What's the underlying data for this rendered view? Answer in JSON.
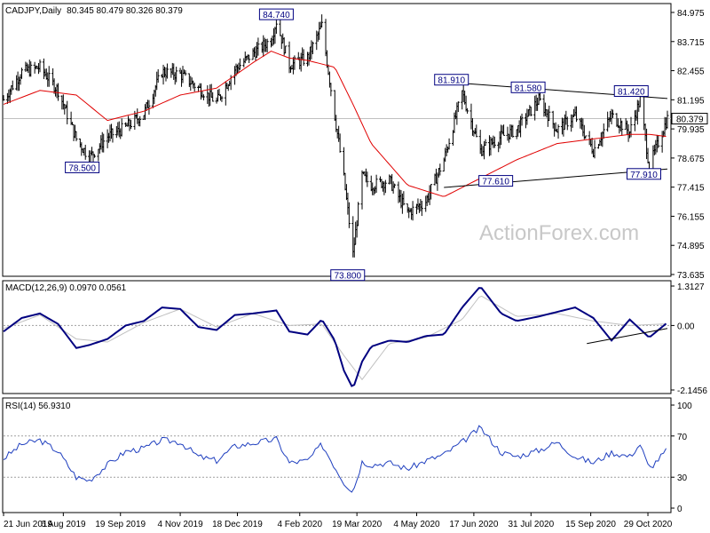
{
  "chart_data": [
    {
      "type": "ohlc",
      "title": "CADJPY,Daily",
      "ohlc_label": "80.345 80.479 80.326 80.379",
      "symbol": "CADJPY",
      "timeframe": "Daily",
      "last": {
        "open": 80.345,
        "high": 80.479,
        "low": 80.326,
        "close": 80.379
      },
      "last_price_label": "80.379",
      "watermark": "ActionForex.com",
      "y_ticks": [
        "84.975",
        "83.715",
        "82.455",
        "81.195",
        "79.935",
        "78.675",
        "77.415",
        "76.155",
        "74.895",
        "73.635"
      ],
      "ylim": [
        73.635,
        84.975
      ],
      "x_ticks": [
        "21 Jun 2019",
        "6 Aug 2019",
        "19 Sep 2019",
        "4 Nov 2019",
        "18 Dec 2019",
        "4 Feb 2020",
        "19 Mar 2020",
        "4 May 2020",
        "17 Jun 2020",
        "31 Jul 2020",
        "15 Sep 2020",
        "29 Oct 2020"
      ],
      "annotations": [
        {
          "label": "84.740",
          "value": 84.74,
          "date": "2020-01-17"
        },
        {
          "label": "78.500",
          "value": 78.5,
          "date": "2019-08-26"
        },
        {
          "label": "73.800",
          "value": 73.8,
          "date": "2020-03-16"
        },
        {
          "label": "81.910",
          "value": 81.91,
          "date": "2020-06-08"
        },
        {
          "label": "81.580",
          "value": 81.58,
          "date": "2020-08-06"
        },
        {
          "label": "81.420",
          "value": 81.42,
          "date": "2020-10-23"
        },
        {
          "label": "77.610",
          "value": 77.61,
          "date": "2020-07-08"
        },
        {
          "label": "77.910",
          "value": 77.91,
          "date": "2020-10-30"
        }
      ],
      "close_series": {
        "dates": [
          "2019-06-21",
          "2019-07-05",
          "2019-07-19",
          "2019-08-02",
          "2019-08-16",
          "2019-08-26",
          "2019-09-09",
          "2019-09-23",
          "2019-10-07",
          "2019-10-21",
          "2019-11-04",
          "2019-11-18",
          "2019-12-02",
          "2019-12-16",
          "2019-12-30",
          "2020-01-13",
          "2020-01-17",
          "2020-01-27",
          "2020-02-10",
          "2020-02-21",
          "2020-03-02",
          "2020-03-09",
          "2020-03-16",
          "2020-03-23",
          "2020-03-30",
          "2020-04-13",
          "2020-04-27",
          "2020-05-11",
          "2020-05-25",
          "2020-06-08",
          "2020-06-22",
          "2020-07-08",
          "2020-07-20",
          "2020-08-06",
          "2020-08-20",
          "2020-09-03",
          "2020-09-17",
          "2020-10-01",
          "2020-10-15",
          "2020-10-23",
          "2020-10-30",
          "2020-11-09",
          "2020-11-13"
        ],
        "values": [
          81.2,
          82.4,
          82.6,
          81.6,
          79.5,
          78.7,
          79.6,
          80.0,
          80.6,
          82.4,
          82.3,
          81.7,
          81.1,
          82.5,
          83.2,
          83.8,
          84.6,
          82.7,
          83.0,
          84.4,
          80.5,
          77.8,
          74.5,
          77.9,
          77.5,
          77.7,
          76.3,
          76.8,
          78.6,
          81.5,
          79.0,
          79.6,
          79.9,
          81.2,
          79.9,
          80.5,
          79.0,
          80.5,
          79.8,
          81.2,
          78.3,
          79.8,
          80.379
        ]
      },
      "ma_series": {
        "name": "",
        "dates": [
          "2019-06-21",
          "2019-07-19",
          "2019-08-16",
          "2019-09-09",
          "2019-10-07",
          "2019-11-04",
          "2019-12-02",
          "2019-12-30",
          "2020-01-13",
          "2020-01-27",
          "2020-02-10",
          "2020-03-02",
          "2020-03-16",
          "2020-03-30",
          "2020-04-27",
          "2020-05-25",
          "2020-06-22",
          "2020-07-20",
          "2020-08-20",
          "2020-09-17",
          "2020-10-15",
          "2020-10-30",
          "2020-11-13"
        ],
        "values": [
          81.0,
          81.6,
          81.4,
          80.3,
          80.7,
          81.4,
          81.7,
          82.8,
          83.3,
          83.0,
          82.9,
          82.6,
          81.0,
          79.3,
          77.5,
          77.0,
          77.8,
          78.6,
          79.3,
          79.5,
          79.7,
          79.7,
          79.6
        ]
      },
      "trendlines": [
        {
          "from": {
            "date": "2020-06-08",
            "value": 81.91
          },
          "to": {
            "date": "2020-11-13",
            "value": 81.25
          }
        },
        {
          "from": {
            "date": "2020-05-25",
            "value": 77.4
          },
          "to": {
            "date": "2020-11-13",
            "value": 78.2
          }
        }
      ]
    },
    {
      "type": "line",
      "title": "MACD(12,26,9) 0.0970 0.0561",
      "y_ticks": [
        "1.3127",
        "0.00",
        "-2.1456"
      ],
      "ylim": [
        -2.1456,
        1.3127
      ],
      "series": [
        {
          "dates": [
            "2019-06-21",
            "2019-07-05",
            "2019-07-19",
            "2019-08-02",
            "2019-08-16",
            "2019-08-26",
            "2019-09-09",
            "2019-09-23",
            "2019-10-07",
            "2019-10-21",
            "2019-11-04",
            "2019-11-18",
            "2019-12-02",
            "2019-12-16",
            "2019-12-30",
            "2020-01-17",
            "2020-01-27",
            "2020-02-10",
            "2020-02-21",
            "2020-03-02",
            "2020-03-09",
            "2020-03-16",
            "2020-03-23",
            "2020-03-30",
            "2020-04-13",
            "2020-04-27",
            "2020-05-11",
            "2020-05-25",
            "2020-06-08",
            "2020-06-22",
            "2020-07-08",
            "2020-07-20",
            "2020-08-06",
            "2020-08-20",
            "2020-09-03",
            "2020-09-17",
            "2020-10-01",
            "2020-10-15",
            "2020-10-30",
            "2020-11-13"
          ],
          "values": [
            -0.2,
            0.25,
            0.4,
            0.05,
            -0.75,
            -0.65,
            -0.45,
            0.0,
            0.15,
            0.6,
            0.55,
            -0.05,
            -0.15,
            0.35,
            0.4,
            0.5,
            -0.2,
            -0.3,
            0.2,
            -0.5,
            -1.5,
            -2.1,
            -1.2,
            -0.7,
            -0.5,
            -0.55,
            -0.35,
            -0.3,
            0.6,
            1.3,
            0.4,
            0.15,
            0.3,
            0.45,
            0.6,
            0.25,
            -0.5,
            0.2,
            -0.4,
            0.097
          ]
        },
        {
          "dates": [
            "2019-06-21",
            "2019-07-19",
            "2019-08-16",
            "2019-09-09",
            "2019-10-07",
            "2019-11-04",
            "2019-12-02",
            "2019-12-30",
            "2020-01-27",
            "2020-02-21",
            "2020-03-09",
            "2020-03-23",
            "2020-04-13",
            "2020-05-11",
            "2020-06-08",
            "2020-06-22",
            "2020-07-20",
            "2020-08-20",
            "2020-09-17",
            "2020-10-15",
            "2020-11-13"
          ],
          "values": [
            -0.1,
            0.35,
            -0.45,
            -0.55,
            0.1,
            0.55,
            -0.05,
            0.4,
            0.0,
            0.05,
            -1.0,
            -1.8,
            -0.6,
            -0.4,
            0.2,
            1.0,
            0.3,
            0.4,
            0.15,
            0.0,
            0.0561
          ]
        }
      ],
      "trendline": {
        "from": {
          "date": "2020-09-12",
          "value": -0.6
        },
        "to": {
          "date": "2020-11-13",
          "value": -0.1
        }
      }
    },
    {
      "type": "line",
      "title": "RSI(14) 56.9310",
      "y_ticks": [
        "100",
        "70",
        "30",
        "0"
      ],
      "ylim": [
        0,
        100
      ],
      "levels": [
        70,
        30
      ],
      "series": [
        {
          "dates": [
            "2019-06-21",
            "2019-07-05",
            "2019-07-19",
            "2019-08-02",
            "2019-08-16",
            "2019-08-26",
            "2019-09-09",
            "2019-09-23",
            "2019-10-07",
            "2019-10-21",
            "2019-11-04",
            "2019-11-18",
            "2019-12-02",
            "2019-12-16",
            "2019-12-30",
            "2020-01-17",
            "2020-01-27",
            "2020-02-10",
            "2020-02-21",
            "2020-03-02",
            "2020-03-09",
            "2020-03-16",
            "2020-03-23",
            "2020-03-30",
            "2020-04-13",
            "2020-04-27",
            "2020-05-11",
            "2020-05-25",
            "2020-06-08",
            "2020-06-22",
            "2020-07-08",
            "2020-07-20",
            "2020-08-06",
            "2020-08-20",
            "2020-09-03",
            "2020-09-17",
            "2020-10-01",
            "2020-10-15",
            "2020-10-23",
            "2020-10-30",
            "2020-11-13"
          ],
          "values": [
            48,
            62,
            66,
            55,
            30,
            27,
            42,
            55,
            58,
            66,
            64,
            50,
            46,
            60,
            63,
            67,
            44,
            46,
            62,
            40,
            25,
            16,
            45,
            42,
            44,
            38,
            46,
            52,
            64,
            78,
            54,
            50,
            56,
            64,
            50,
            44,
            54,
            50,
            62,
            38,
            56.931
          ]
        }
      ]
    }
  ]
}
